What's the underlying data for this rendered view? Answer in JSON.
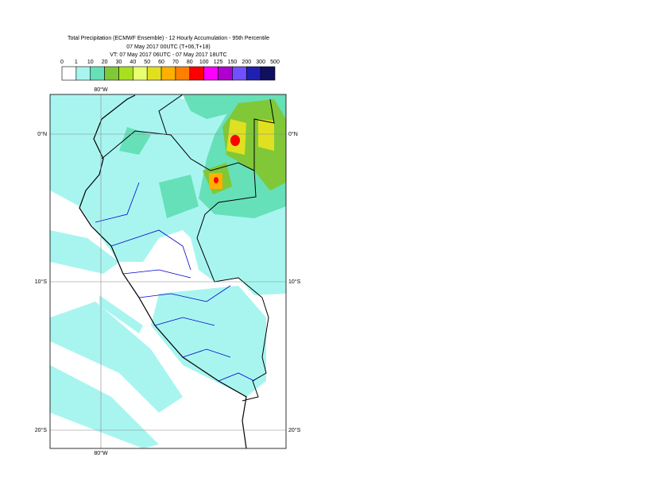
{
  "title": [
    "Total Precipitation (ECMWF Ensemble) - 12 Hourly Accumulation - 95th Percentile",
    "07 May 2017 00UTC (T+06,T+18)",
    "VT: 07 May 2017 06UTC - 07 May 2017 18UTC"
  ],
  "legend": {
    "labels": [
      0,
      1,
      10,
      20,
      30,
      40,
      50,
      60,
      70,
      80,
      100,
      125,
      150,
      200,
      300,
      500
    ],
    "colors": [
      "#ffffff",
      "#a8f5f0",
      "#66e0b8",
      "#80c838",
      "#a8e020",
      "#e8ff70",
      "#e0e020",
      "#ffb000",
      "#ff8000",
      "#ff0000",
      "#ff00ff",
      "#b000d0",
      "#7050ff",
      "#2020b0",
      "#101060"
    ]
  },
  "map": {
    "lon_labels": [
      "80°W"
    ],
    "lat_labels": [
      "0°N",
      "10°S",
      "20°S"
    ]
  }
}
